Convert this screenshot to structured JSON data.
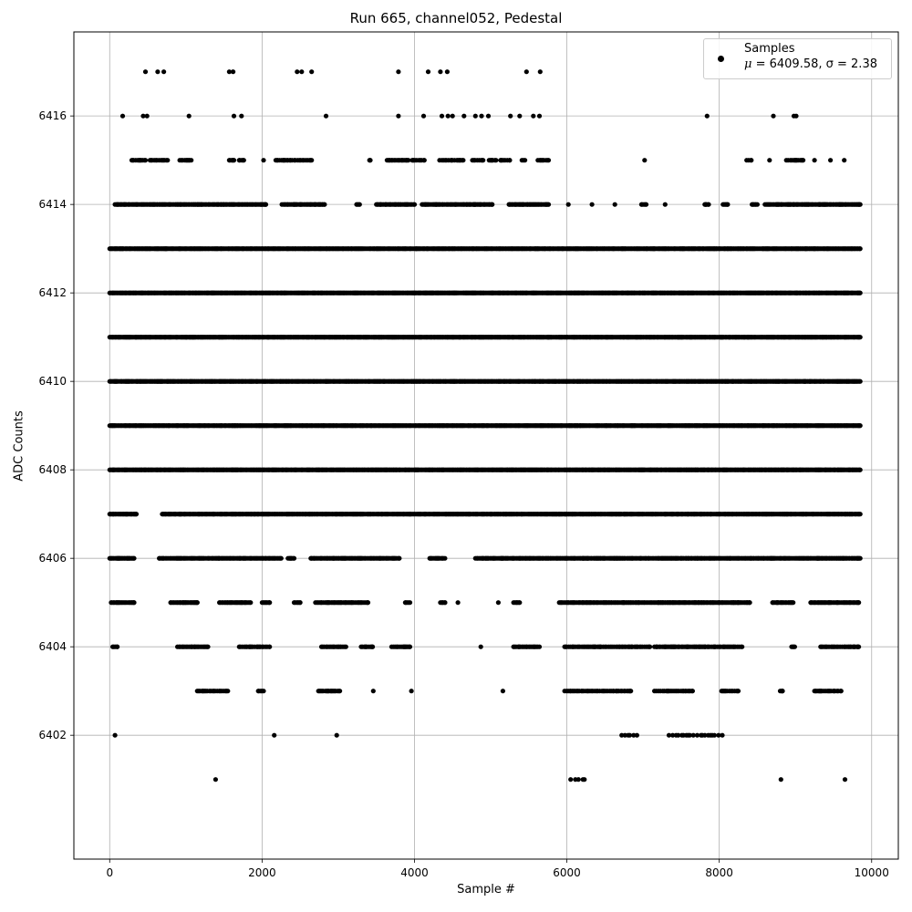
{
  "chart_data": {
    "type": "scatter",
    "title": "Run 665, channel052, Pedestal",
    "xlabel": "Sample #",
    "ylabel": "ADC Counts",
    "xlim": [
      -470,
      10350
    ],
    "ylim": [
      6399.2,
      6417.9
    ],
    "xticks": [
      0,
      2000,
      4000,
      6000,
      8000,
      10000
    ],
    "yticks": [
      6402,
      6404,
      6406,
      6408,
      6410,
      6412,
      6414,
      6416
    ],
    "grid": true,
    "legend_position": "top-right",
    "marker_color": "#000000",
    "series": [
      {
        "name": "Samples",
        "stats": {
          "mu": 6409.58,
          "sigma": 2.38
        },
        "stats_text": "= 6409.58, σ = 2.38",
        "n_points": 9850,
        "points": [
          [
            70,
            6402
          ],
          [
            2160,
            6402
          ],
          [
            2980,
            6402
          ],
          [
            6720,
            6402
          ],
          [
            6780,
            6402
          ],
          [
            6830,
            6402
          ],
          [
            6920,
            6402
          ],
          [
            7340,
            6402
          ],
          [
            7540,
            6402
          ],
          [
            7640,
            6402
          ],
          [
            8040,
            6402
          ],
          [
            1390,
            6401
          ],
          [
            6050,
            6401
          ],
          [
            6230,
            6401
          ],
          [
            8810,
            6401
          ],
          [
            9650,
            6401
          ]
        ],
        "levels": [
          {
            "y": 6401,
            "ranges": [
              [
                1390,
                1390
              ],
              [
                6050,
                6230
              ],
              [
                8810,
                8810
              ],
              [
                9650,
                9650
              ]
            ],
            "density": 0.2
          },
          {
            "y": 6402,
            "ranges": [
              [
                70,
                70
              ],
              [
                2160,
                2160
              ],
              [
                2980,
                2980
              ],
              [
                6720,
                6920
              ],
              [
                7340,
                8040
              ]
            ],
            "density": 0.3
          },
          {
            "y": 6403,
            "ranges": [
              [
                1150,
                1550
              ],
              [
                1950,
                2020
              ],
              [
                2740,
                3020
              ],
              [
                3460,
                3460
              ],
              [
                3960,
                3960
              ],
              [
                5160,
                5160
              ],
              [
                5970,
                6840
              ],
              [
                7150,
                7650
              ],
              [
                8030,
                8250
              ],
              [
                8800,
                8830
              ],
              [
                9250,
                9600
              ]
            ],
            "density": 0.55
          },
          {
            "y": 6404,
            "ranges": [
              [
                40,
                100
              ],
              [
                890,
                1290
              ],
              [
                1700,
                2100
              ],
              [
                2780,
                3100
              ],
              [
                3300,
                3450
              ],
              [
                3700,
                3940
              ],
              [
                4870,
                4870
              ],
              [
                5300,
                5640
              ],
              [
                5970,
                7090
              ],
              [
                7150,
                8300
              ],
              [
                8950,
                8990
              ],
              [
                9330,
                9830
              ]
            ],
            "density": 0.6
          },
          {
            "y": 6405,
            "ranges": [
              [
                20,
                320
              ],
              [
                800,
                1150
              ],
              [
                1440,
                1850
              ],
              [
                2000,
                2100
              ],
              [
                2420,
                2500
              ],
              [
                2700,
                3390
              ],
              [
                3880,
                3940
              ],
              [
                4340,
                4400
              ],
              [
                4570,
                4570
              ],
              [
                5100,
                5100
              ],
              [
                5300,
                5380
              ],
              [
                5900,
                8400
              ],
              [
                8700,
                8970
              ],
              [
                9200,
                9830
              ]
            ],
            "density": 0.75
          },
          {
            "y": 6406,
            "ranges": [
              [
                0,
                320
              ],
              [
                650,
                2250
              ],
              [
                2340,
                2420
              ],
              [
                2640,
                3800
              ],
              [
                4200,
                4400
              ],
              [
                4800,
                9850
              ]
            ],
            "density": 0.8
          },
          {
            "y": 6407,
            "ranges": [
              [
                0,
                350
              ],
              [
                690,
                9850
              ]
            ],
            "density": 0.9
          },
          {
            "y": 6408,
            "ranges": [
              [
                0,
                9850
              ]
            ],
            "density": 1
          },
          {
            "y": 6409,
            "ranges": [
              [
                0,
                9850
              ]
            ],
            "density": 1
          },
          {
            "y": 6410,
            "ranges": [
              [
                0,
                9850
              ]
            ],
            "density": 1
          },
          {
            "y": 6411,
            "ranges": [
              [
                0,
                9850
              ]
            ],
            "density": 1
          },
          {
            "y": 6412,
            "ranges": [
              [
                0,
                9850
              ]
            ],
            "density": 1
          },
          {
            "y": 6413,
            "ranges": [
              [
                0,
                9850
              ]
            ],
            "density": 0.95
          },
          {
            "y": 6414,
            "ranges": [
              [
                70,
                2050
              ],
              [
                2260,
                2820
              ],
              [
                3240,
                3280
              ],
              [
                3500,
                4000
              ],
              [
                4100,
                5020
              ],
              [
                5240,
                5760
              ],
              [
                6020,
                6020
              ],
              [
                6330,
                6330
              ],
              [
                6630,
                6630
              ],
              [
                6980,
                7040
              ],
              [
                7290,
                7290
              ],
              [
                7810,
                7860
              ],
              [
                8050,
                8110
              ],
              [
                8430,
                8500
              ],
              [
                8600,
                9850
              ]
            ],
            "density": 0.75
          },
          {
            "y": 6415,
            "ranges": [
              [
                290,
                470
              ],
              [
                530,
                760
              ],
              [
                920,
                1070
              ],
              [
                1570,
                1630
              ],
              [
                1700,
                1760
              ],
              [
                2020,
                2020
              ],
              [
                2180,
                2650
              ],
              [
                3410,
                3420
              ],
              [
                3640,
                3920
              ],
              [
                3970,
                4130
              ],
              [
                4330,
                4640
              ],
              [
                4760,
                4900
              ],
              [
                4980,
                5070
              ],
              [
                5130,
                5250
              ],
              [
                5410,
                5450
              ],
              [
                5620,
                5760
              ],
              [
                7020,
                7020
              ],
              [
                8360,
                8420
              ],
              [
                8660,
                8660
              ],
              [
                8880,
                9100
              ],
              [
                9250,
                9250
              ],
              [
                9460,
                9460
              ],
              [
                9640,
                9640
              ]
            ],
            "density": 0.55
          }
        ],
        "sparse_points": [
          [
            170,
            6416
          ],
          [
            440,
            6416
          ],
          [
            490,
            6416
          ],
          [
            1040,
            6416
          ],
          [
            1630,
            6416
          ],
          [
            1730,
            6416
          ],
          [
            2840,
            6416
          ],
          [
            3790,
            6416
          ],
          [
            4120,
            6416
          ],
          [
            4360,
            6416
          ],
          [
            4440,
            6416
          ],
          [
            4500,
            6416
          ],
          [
            4650,
            6416
          ],
          [
            4800,
            6416
          ],
          [
            4880,
            6416
          ],
          [
            4970,
            6416
          ],
          [
            5260,
            6416
          ],
          [
            5380,
            6416
          ],
          [
            5560,
            6416
          ],
          [
            5640,
            6416
          ],
          [
            7840,
            6416
          ],
          [
            8710,
            6416
          ],
          [
            8980,
            6416
          ],
          [
            9010,
            6416
          ],
          [
            470,
            6417
          ],
          [
            630,
            6417
          ],
          [
            710,
            6417
          ],
          [
            1570,
            6417
          ],
          [
            1620,
            6417
          ],
          [
            2460,
            6417
          ],
          [
            2520,
            6417
          ],
          [
            2650,
            6417
          ],
          [
            3790,
            6417
          ],
          [
            4180,
            6417
          ],
          [
            4340,
            6417
          ],
          [
            4430,
            6417
          ],
          [
            5470,
            6417
          ],
          [
            5650,
            6417
          ]
        ]
      }
    ]
  }
}
